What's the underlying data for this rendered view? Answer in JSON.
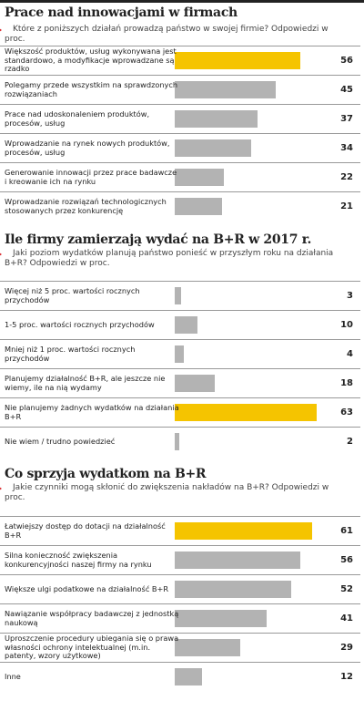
{
  "chart_data": [
    {
      "type": "bar",
      "title": "Prace nad innowacjami w firmach",
      "subtitle": "Które z poniższych działań prowadzą państwo w swojej firmie? Odpowiedzi w proc.",
      "categories": [
        "Większość produktów, usług wykonywana jest standardowo, a modyfikacje wprowadzane są rzadko",
        "Polegamy przede wszystkim na sprawdzonych rozwiązaniach",
        "Prace nad udoskonaleniem produktów, procesów, usług",
        "Wprowadzanie na rynek nowych produktów, procesów, usług",
        "Generowanie innowacji przez prace badawcze i kreowanie ich na rynku",
        "Wprowadzanie rozwiązań technologicznych stosowanych przez konkurencję"
      ],
      "values": [
        56,
        45,
        37,
        34,
        22,
        21
      ],
      "colors": [
        "#f5c400",
        "#b3b3b3",
        "#b3b3b3",
        "#b3b3b3",
        "#b3b3b3",
        "#b3b3b3"
      ]
    },
    {
      "type": "bar",
      "title": "Ile firmy zamierzają wydać na B+R w 2017 r.",
      "subtitle": "Jaki poziom wydatków planują państwo ponieść w przyszłym roku na działania B+R? Odpowiedzi w proc.",
      "categories": [
        "Więcej niż 5 proc. wartości rocznych przychodów",
        "1-5 proc. wartości rocznych przychodów",
        "Mniej niż 1 proc. wartości rocznych przychodów",
        "Planujemy działalność B+R, ale jeszcze nie wiemy, ile na nią wydamy",
        "Nie planujemy żadnych wydatków na działania B+R",
        "Nie wiem / trudno powiedzieć"
      ],
      "values": [
        3,
        10,
        4,
        18,
        63,
        2
      ],
      "colors": [
        "#b3b3b3",
        "#b3b3b3",
        "#b3b3b3",
        "#b3b3b3",
        "#f5c400",
        "#b3b3b3"
      ]
    },
    {
      "type": "bar",
      "title": "Co sprzyja wydatkom na B+R",
      "subtitle": "Jakie czynniki mogą skłonić do zwiększenia nakładów na B+R? Odpowiedzi w proc.",
      "categories": [
        "Łatwiejszy dostęp do dotacji na działalność B+R",
        "Silna konieczność zwiększenia konkurencyjności naszej firmy na rynku",
        "Większe ulgi podatkowe na działalność B+R",
        "Nawiązanie współpracy badawczej z jednostką naukową",
        "Uproszczenie procedury ubiegania się o prawa własności ochrony intelektualnej (m.in. patenty, wzory użytkowe)",
        "Inne"
      ],
      "values": [
        61,
        56,
        52,
        41,
        29,
        12
      ],
      "colors": [
        "#f5c400",
        "#b3b3b3",
        "#b3b3b3",
        "#b3b3b3",
        "#b3b3b3",
        "#b3b3b3"
      ]
    }
  ]
}
